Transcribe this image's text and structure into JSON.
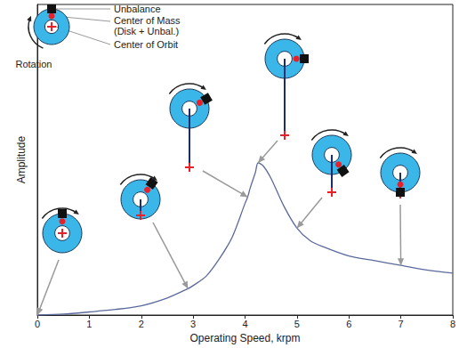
{
  "chart_data": {
    "type": "line",
    "x_label": "Operating Speed, krpm",
    "y_label": "Amplitude",
    "x": [
      0,
      0.5,
      1,
      1.5,
      2,
      2.5,
      2.9,
      3,
      3.25,
      3.5,
      3.75,
      4,
      4.05,
      4.1,
      4.2,
      4.25,
      4.35,
      4.5,
      4.75,
      5,
      5.25,
      5.5,
      6,
      6.5,
      7,
      7.5,
      8
    ],
    "values": [
      0,
      0.003,
      0.01,
      0.018,
      0.03,
      0.055,
      0.085,
      0.095,
      0.125,
      0.18,
      0.25,
      0.36,
      0.38,
      0.41,
      0.46,
      0.49,
      0.48,
      0.44,
      0.35,
      0.28,
      0.24,
      0.22,
      0.19,
      0.175,
      0.16,
      0.145,
      0.135
    ],
    "color": "#5b6a9c",
    "xlim": [
      0,
      8
    ],
    "xticks": [
      0,
      1,
      2,
      3,
      4,
      5,
      6,
      7,
      8
    ],
    "ylim": [
      0,
      1
    ],
    "grid": false,
    "tick_labels": "x",
    "annotations": [
      "Unbalance",
      "Center of Mass (Disk + Unbal.)",
      "Center of Orbit",
      "Rotation"
    ],
    "diagram_speeds": [
      0,
      2.9,
      4.05,
      4.25,
      5,
      7
    ]
  }
}
